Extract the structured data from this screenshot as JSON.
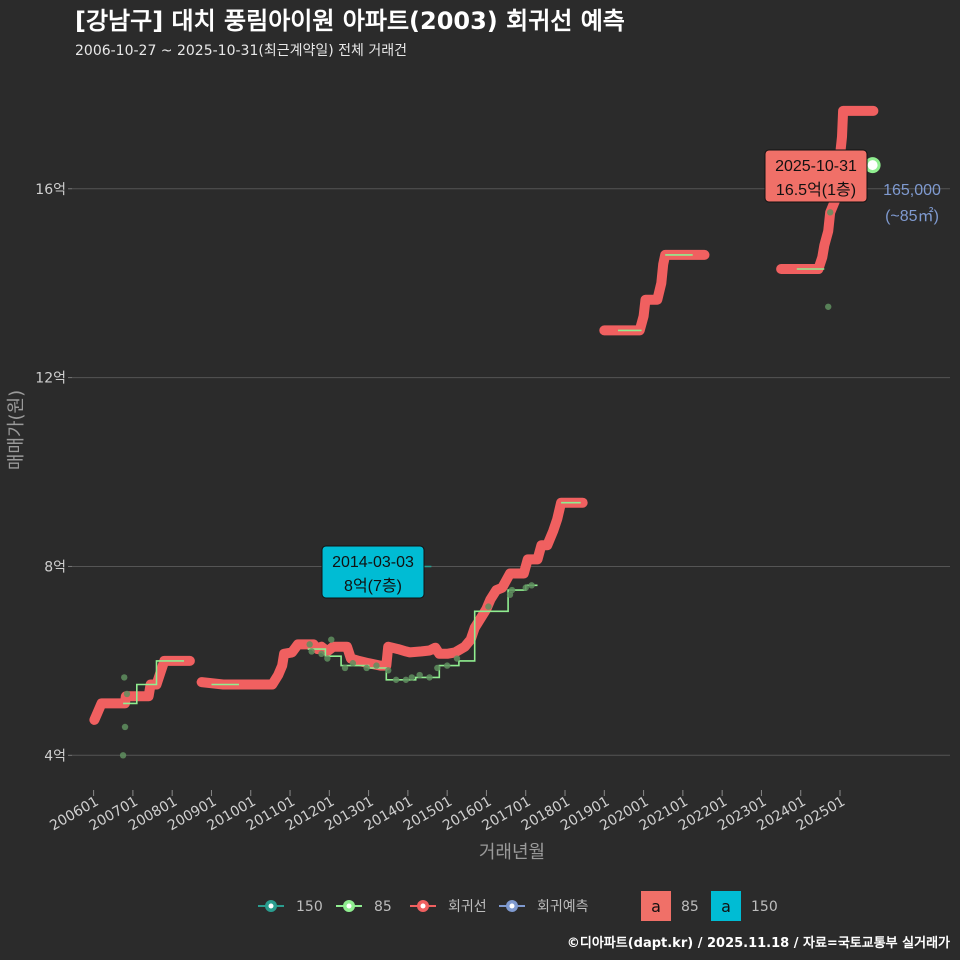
{
  "chart_data": {
    "type": "line",
    "title": "[강남구] 대치 풍림아이원 아파트(2003) 회귀선 예측",
    "subtitle": "2006-10-27 ~ 2025-10-31(최근계약일) 전체 거래건",
    "xlabel": "거래년월",
    "ylabel": "매매가(원)",
    "x_ticks": [
      "200601",
      "200701",
      "200801",
      "200901",
      "201001",
      "201101",
      "201201",
      "201301",
      "201401",
      "201501",
      "201601",
      "201701",
      "201801",
      "201901",
      "202001",
      "202101",
      "202201",
      "202301",
      "202401",
      "202501"
    ],
    "y_ticks": [
      "4억",
      "8억",
      "12억",
      "16억"
    ],
    "y_tick_values": [
      40000,
      80000,
      120000,
      160000
    ],
    "ylim": [
      33500,
      186000
    ],
    "xlim": [
      2005.45,
      2027.8
    ],
    "colors": {
      "s150": "#2a9d8f",
      "s85": "#90ee90",
      "regression": "#f06060",
      "forecast": "#7f9ad0",
      "label150_bg": "#00bcd4",
      "label85_bg": "#f07068",
      "grid": "#555555"
    },
    "regression_segments": [
      [
        [
          2006.02,
          47500
        ],
        [
          2006.1,
          49000
        ],
        [
          2006.2,
          51000
        ],
        [
          2006.8,
          51000
        ],
        [
          2006.82,
          52500
        ],
        [
          2007.4,
          52500
        ],
        [
          2007.45,
          55000
        ],
        [
          2007.6,
          55000
        ],
        [
          2007.7,
          57500
        ],
        [
          2007.8,
          60000
        ],
        [
          2008.45,
          60000
        ]
      ],
      [
        [
          2008.75,
          55500
        ],
        [
          2009.3,
          55000
        ],
        [
          2010.55,
          55000
        ],
        [
          2010.7,
          57000
        ],
        [
          2010.8,
          59000
        ],
        [
          2010.85,
          61500
        ],
        [
          2011.05,
          61800
        ],
        [
          2011.2,
          63500
        ],
        [
          2011.6,
          63500
        ],
        [
          2011.7,
          62500
        ],
        [
          2011.8,
          63000
        ],
        [
          2011.95,
          62000
        ],
        [
          2012.1,
          63000
        ],
        [
          2012.45,
          63000
        ],
        [
          2012.55,
          60500
        ],
        [
          2012.75,
          60000
        ],
        [
          2013.0,
          59500
        ],
        [
          2013.3,
          59000
        ],
        [
          2013.45,
          59000
        ],
        [
          2013.5,
          63000
        ],
        [
          2013.75,
          62500
        ],
        [
          2013.95,
          62000
        ],
        [
          2014.05,
          61800
        ],
        [
          2014.35,
          62000
        ],
        [
          2014.55,
          62200
        ],
        [
          2014.7,
          62800
        ],
        [
          2014.8,
          61500
        ],
        [
          2015.0,
          61500
        ],
        [
          2015.2,
          61800
        ],
        [
          2015.45,
          63000
        ],
        [
          2015.6,
          64500
        ],
        [
          2015.7,
          67000
        ],
        [
          2015.85,
          69000
        ],
        [
          2016.0,
          71000
        ],
        [
          2016.1,
          73000
        ],
        [
          2016.25,
          75000
        ],
        [
          2016.4,
          75500
        ],
        [
          2016.5,
          77000
        ],
        [
          2016.6,
          78500
        ],
        [
          2016.95,
          78500
        ],
        [
          2017.05,
          81500
        ],
        [
          2017.3,
          81500
        ],
        [
          2017.4,
          84500
        ],
        [
          2017.55,
          84500
        ],
        [
          2017.7,
          87500
        ],
        [
          2017.8,
          90000
        ],
        [
          2017.9,
          93500
        ],
        [
          2018.45,
          93500
        ]
      ],
      [
        [
          2019.0,
          130000
        ],
        [
          2019.9,
          130000
        ],
        [
          2020.0,
          133000
        ],
        [
          2020.05,
          136500
        ],
        [
          2020.35,
          136500
        ],
        [
          2020.45,
          140000
        ],
        [
          2020.5,
          144000
        ],
        [
          2020.55,
          146000
        ],
        [
          2021.55,
          146000
        ]
      ],
      [
        [
          2023.5,
          143000
        ],
        [
          2024.45,
          143000
        ],
        [
          2024.55,
          145500
        ],
        [
          2024.6,
          148000
        ],
        [
          2024.7,
          151000
        ],
        [
          2024.75,
          155000
        ],
        [
          2024.9,
          158000
        ],
        [
          2024.95,
          162000
        ],
        [
          2025.0,
          167000
        ],
        [
          2025.05,
          171000
        ],
        [
          2025.08,
          176500
        ],
        [
          2025.85,
          176500
        ]
      ]
    ],
    "series": [
      {
        "name": "85",
        "color": "#90ee90",
        "points": [
          [
            2006.75,
            40000
          ],
          [
            2006.8,
            46000
          ],
          [
            2006.85,
            53000
          ],
          [
            2006.78,
            56500
          ],
          [
            2011.5,
            63500
          ],
          [
            2011.55,
            62000
          ],
          [
            2011.8,
            61500
          ],
          [
            2012.05,
            64500
          ],
          [
            2011.95,
            60500
          ],
          [
            2012.4,
            58500
          ],
          [
            2012.6,
            59500
          ],
          [
            2012.95,
            58500
          ],
          [
            2013.2,
            59000
          ],
          [
            2013.5,
            58000
          ],
          [
            2013.7,
            56000
          ],
          [
            2013.95,
            56000
          ],
          [
            2014.1,
            56500
          ],
          [
            2014.3,
            57000
          ],
          [
            2014.55,
            56500
          ],
          [
            2014.75,
            58500
          ],
          [
            2015.0,
            59000
          ],
          [
            2015.25,
            60500
          ],
          [
            2016.05,
            71500
          ],
          [
            2016.6,
            74000
          ],
          [
            2016.65,
            75000
          ],
          [
            2017.0,
            75500
          ],
          [
            2017.15,
            76000
          ],
          [
            2024.7,
            135000
          ],
          [
            2024.75,
            155000
          ],
          [
            2025.83,
            165000
          ]
        ],
        "steps": [
          [
            [
              2006.75,
              51000
            ],
            [
              2007.1,
              51000
            ],
            [
              2007.1,
              55000
            ],
            [
              2007.6,
              55000
            ],
            [
              2007.6,
              60000
            ],
            [
              2008.3,
              60000
            ]
          ],
          [
            [
              2009.0,
              55000
            ],
            [
              2009.7,
              55000
            ]
          ],
          [
            [
              2011.45,
              62500
            ],
            [
              2011.9,
              62500
            ],
            [
              2011.9,
              61000
            ],
            [
              2012.3,
              61000
            ],
            [
              2012.3,
              59000
            ],
            [
              2013.0,
              59000
            ],
            [
              2013.0,
              58500
            ],
            [
              2013.45,
              58500
            ],
            [
              2013.45,
              56000
            ],
            [
              2014.2,
              56000
            ],
            [
              2014.2,
              56500
            ],
            [
              2014.8,
              56500
            ],
            [
              2014.8,
              59000
            ],
            [
              2015.3,
              59000
            ],
            [
              2015.3,
              60000
            ],
            [
              2015.7,
              60000
            ],
            [
              2015.7,
              70500
            ],
            [
              2016.55,
              70500
            ],
            [
              2016.55,
              75000
            ],
            [
              2017.0,
              75000
            ],
            [
              2017.0,
              76000
            ],
            [
              2017.3,
              76000
            ]
          ],
          [
            [
              2017.9,
              93500
            ],
            [
              2018.4,
              93500
            ]
          ],
          [
            [
              2019.35,
              130000
            ],
            [
              2019.95,
              130000
            ]
          ],
          [
            [
              2020.55,
              146000
            ],
            [
              2021.25,
              146000
            ]
          ],
          [
            [
              2023.9,
              143000
            ],
            [
              2024.6,
              143000
            ]
          ]
        ]
      },
      {
        "name": "150",
        "color": "#2a9d8f",
        "points": [
          [
            2014.2,
            80000
          ]
        ],
        "steps": [
          [
            [
              2014.1,
              80000
            ],
            [
              2014.6,
              80000
            ]
          ]
        ]
      }
    ],
    "annotations": [
      {
        "name": "latest",
        "date": "2025-10-31",
        "text": "16.5억(1층)",
        "value": 165000,
        "bg": "#f07068"
      },
      {
        "name": "series150",
        "date": "2014-03-03",
        "text": "8억(7층)",
        "value": 80000,
        "bg": "#00bcd4"
      }
    ],
    "side_label": {
      "value": "165,000",
      "area": "(~85㎡)",
      "color": "#7f9ad0"
    },
    "legend": [
      {
        "label": "150",
        "type": "line-dot",
        "color": "#2a9d8f"
      },
      {
        "label": "85",
        "type": "line-dot",
        "color": "#90ee90"
      },
      {
        "label": "회귀선",
        "type": "line-dot",
        "color": "#f06060"
      },
      {
        "label": "회귀예측",
        "type": "line-dot",
        "color": "#7f9ad0"
      },
      {
        "label": "85",
        "type": "box",
        "color": "#f07068",
        "glyph": "a"
      },
      {
        "label": "150",
        "type": "box",
        "color": "#00bcd4",
        "glyph": "a"
      }
    ],
    "credit": "©디아파트(dapt.kr) / 2025.11.18 / 자료=국토교통부 실거래가"
  }
}
